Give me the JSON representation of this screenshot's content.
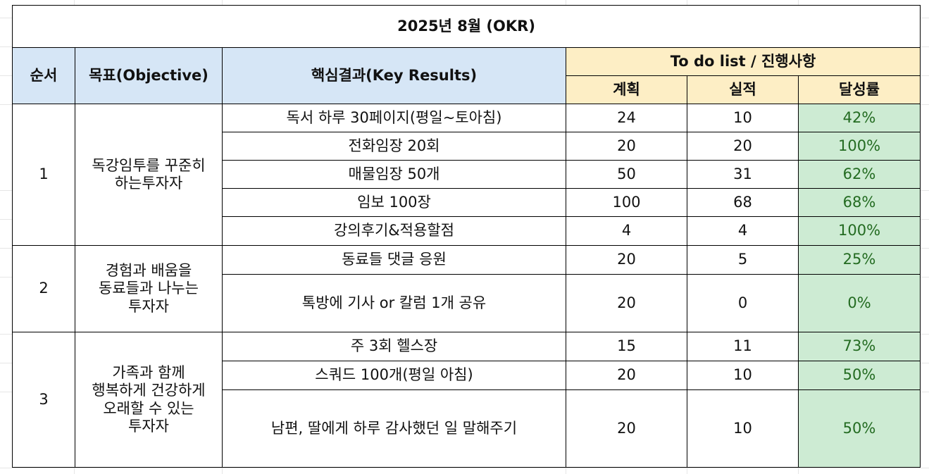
{
  "title": "2025년 8월 (OKR)",
  "headers": {
    "order": "순서",
    "objective": "목표(Objective)",
    "key_results": "핵심결과(Key Results)",
    "todo": "To do list / 진행사항",
    "plan": "계획",
    "actual": "실적",
    "rate": "달성률"
  },
  "groups": [
    {
      "order": "1",
      "objective": "독강임투를 꾸준히\n하는투자자",
      "rows": [
        {
          "kr": "독서 하루 30페이지(평일~토아침)",
          "plan": "24",
          "actual": "10",
          "rate": "42%"
        },
        {
          "kr": "전화임장 20회",
          "plan": "20",
          "actual": "20",
          "rate": "100%"
        },
        {
          "kr": "매물임장 50개",
          "plan": "50",
          "actual": "31",
          "rate": "62%"
        },
        {
          "kr": "임보 100장",
          "plan": "100",
          "actual": "68",
          "rate": "68%"
        },
        {
          "kr": "강의후기&적용할점",
          "plan": "4",
          "actual": "4",
          "rate": "100%"
        }
      ]
    },
    {
      "order": "2",
      "objective": "경험과 배움을\n동료들과 나누는\n투자자",
      "rows": [
        {
          "kr": "동료들 댓글 응원",
          "plan": "20",
          "actual": "5",
          "rate": "25%"
        },
        {
          "kr": "톡방에 기사 or 칼럼 1개 공유",
          "plan": "20",
          "actual": "0",
          "rate": "0%"
        }
      ]
    },
    {
      "order": "3",
      "objective": "가족과 함께\n행복하게 건강하게\n오래할 수 있는\n투자자",
      "rows": [
        {
          "kr": "주 3회 헬스장",
          "plan": "15",
          "actual": "11",
          "rate": "73%"
        },
        {
          "kr": "스쿼드 100개(평일 아침)",
          "plan": "20",
          "actual": "10",
          "rate": "50%"
        },
        {
          "kr": "남편, 딸에게 하루 감사했던 일 말해주기",
          "plan": "20",
          "actual": "10",
          "rate": "50%"
        }
      ]
    }
  ],
  "colors": {
    "header_blue": "#d6e6f6",
    "header_yellow": "#fdeec5",
    "rate_green_bg": "#cdebd3",
    "rate_green_text": "#236b21"
  }
}
